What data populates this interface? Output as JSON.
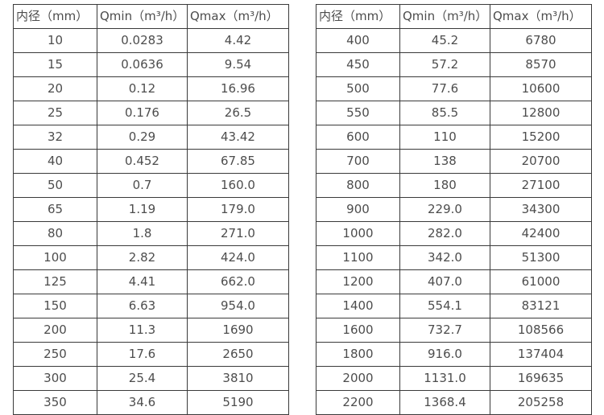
{
  "page": {
    "background_color": "#ffffff",
    "border_color": "#3a3a3a",
    "text_color": "#4d4d4d"
  },
  "tables": [
    {
      "name": "diameter-flow-table-small",
      "headers": [
        "内径（mm）",
        "Qmin（m³/h）",
        "Qmax（m³/h）"
      ],
      "rows": [
        [
          "10",
          "0.0283",
          "4.42"
        ],
        [
          "15",
          "0.0636",
          "9.54"
        ],
        [
          "20",
          "0.12",
          "16.96"
        ],
        [
          "25",
          "0.176",
          "26.5"
        ],
        [
          "32",
          "0.29",
          "43.42"
        ],
        [
          "40",
          "0.452",
          "67.85"
        ],
        [
          "50",
          "0.7",
          "160.0"
        ],
        [
          "65",
          "1.19",
          "179.0"
        ],
        [
          "80",
          "1.8",
          "271.0"
        ],
        [
          "100",
          "2.82",
          "424.0"
        ],
        [
          "125",
          "4.41",
          "662.0"
        ],
        [
          "150",
          "6.63",
          "954.0"
        ],
        [
          "200",
          "11.3",
          "1690"
        ],
        [
          "250",
          "17.6",
          "2650"
        ],
        [
          "300",
          "25.4",
          "3810"
        ],
        [
          "350",
          "34.6",
          "5190"
        ]
      ]
    },
    {
      "name": "diameter-flow-table-large",
      "headers": [
        "内径（mm）",
        "Qmin（m³/h）",
        "Qmax（m³/h）"
      ],
      "rows": [
        [
          "400",
          "45.2",
          "6780"
        ],
        [
          "450",
          "57.2",
          "8570"
        ],
        [
          "500",
          "77.6",
          "10600"
        ],
        [
          "550",
          "85.5",
          "12800"
        ],
        [
          "600",
          "110",
          "15200"
        ],
        [
          "700",
          "138",
          "20700"
        ],
        [
          "800",
          "180",
          "27100"
        ],
        [
          "900",
          "229.0",
          "34300"
        ],
        [
          "1000",
          "282.0",
          "42400"
        ],
        [
          "1100",
          "342.0",
          "51300"
        ],
        [
          "1200",
          "407.0",
          "61000"
        ],
        [
          "1400",
          "554.1",
          "83121"
        ],
        [
          "1600",
          "732.7",
          "108566"
        ],
        [
          "1800",
          "916.0",
          "137404"
        ],
        [
          "2000",
          "1131.0",
          "169635"
        ],
        [
          "2200",
          "1368.4",
          "205258"
        ]
      ]
    }
  ]
}
